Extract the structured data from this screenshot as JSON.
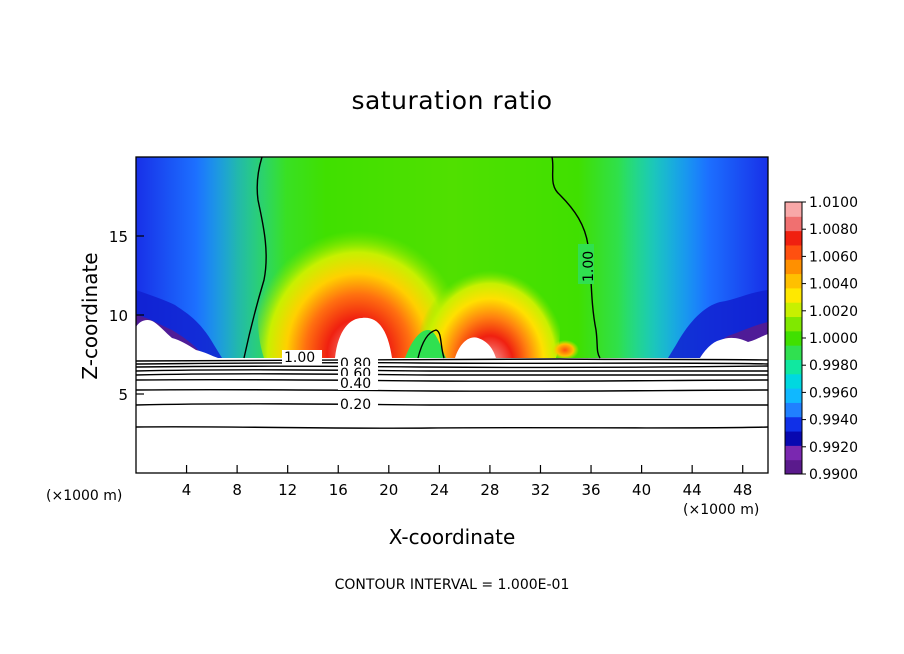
{
  "chart_data": {
    "type": "heatmap",
    "title": "saturation ratio",
    "xlabel": "X-coordinate",
    "ylabel": "Z-coordinate",
    "x_unit": "(×1000 m)",
    "x_range": [
      0,
      50
    ],
    "y_range": [
      0,
      20
    ],
    "x_ticks": [
      4,
      8,
      12,
      16,
      20,
      24,
      28,
      32,
      36,
      40,
      44,
      48
    ],
    "y_ticks": [
      5,
      10,
      15
    ],
    "footer": "CONTOUR INTERVAL = 1.000E-01",
    "colorbar": {
      "range": [
        0.99,
        1.01
      ],
      "labels": [
        "1.0100",
        "1.0080",
        "1.0060",
        "1.0040",
        "1.0020",
        "1.0000",
        "0.9980",
        "0.9960",
        "0.9940",
        "0.9920",
        "0.9900"
      ],
      "colors": [
        "#5a1a8c",
        "#7a28b0",
        "#0808b0",
        "#1030e8",
        "#2080ff",
        "#10b8ff",
        "#00d8e0",
        "#10e8a0",
        "#30e050",
        "#40e000",
        "#80e800",
        "#c8f000",
        "#ffe800",
        "#ffc000",
        "#ff9000",
        "#ff5010",
        "#f02010",
        "#f07070",
        "#f8a8a8"
      ]
    },
    "contour_labels": [
      "1.00",
      "1.00",
      "0.80",
      "0.60",
      "0.40",
      "0.20"
    ],
    "contour_levels": [
      0.2,
      0.3,
      0.4,
      0.5,
      0.6,
      0.7,
      0.8,
      0.9,
      1.0
    ]
  }
}
